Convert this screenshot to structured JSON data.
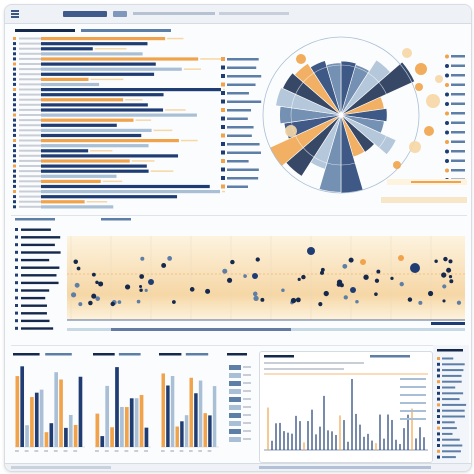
{
  "top_bar": {
    "search_placeholder": "",
    "menu_items": [
      "",
      "",
      "",
      "",
      ""
    ]
  },
  "colors": {
    "navy": "#1f3d73",
    "mid_blue": "#5d7ea6",
    "light_blue": "#a9bfd6",
    "orange": "#f0a34a",
    "pale_orange": "#f6d7a6",
    "cream": "#fdf3df",
    "gray": "#c9ced6",
    "dark_navy": "#15294d"
  },
  "panels": {
    "bar_panel": {
      "title": ""
    },
    "pie_panel": {
      "title": "",
      "legend_label": ""
    },
    "dot_panel": {
      "title": ""
    },
    "column_panel_1": {
      "title": ""
    },
    "column_panel_2": {
      "title": ""
    },
    "column_panel_3": {
      "title": ""
    },
    "column_panel_4": {
      "title": ""
    },
    "line_panel": {
      "title": ""
    },
    "side_panel": {
      "title": ""
    }
  },
  "legend_items": [
    {
      "color": "#1f3d73",
      "label": ""
    },
    {
      "color": "#f0a34a",
      "label": ""
    },
    {
      "color": "#a9bfd6",
      "label": ""
    }
  ],
  "icons": [
    "search-icon",
    "menu-icon",
    "chart-icon",
    "settings-icon"
  ]
}
